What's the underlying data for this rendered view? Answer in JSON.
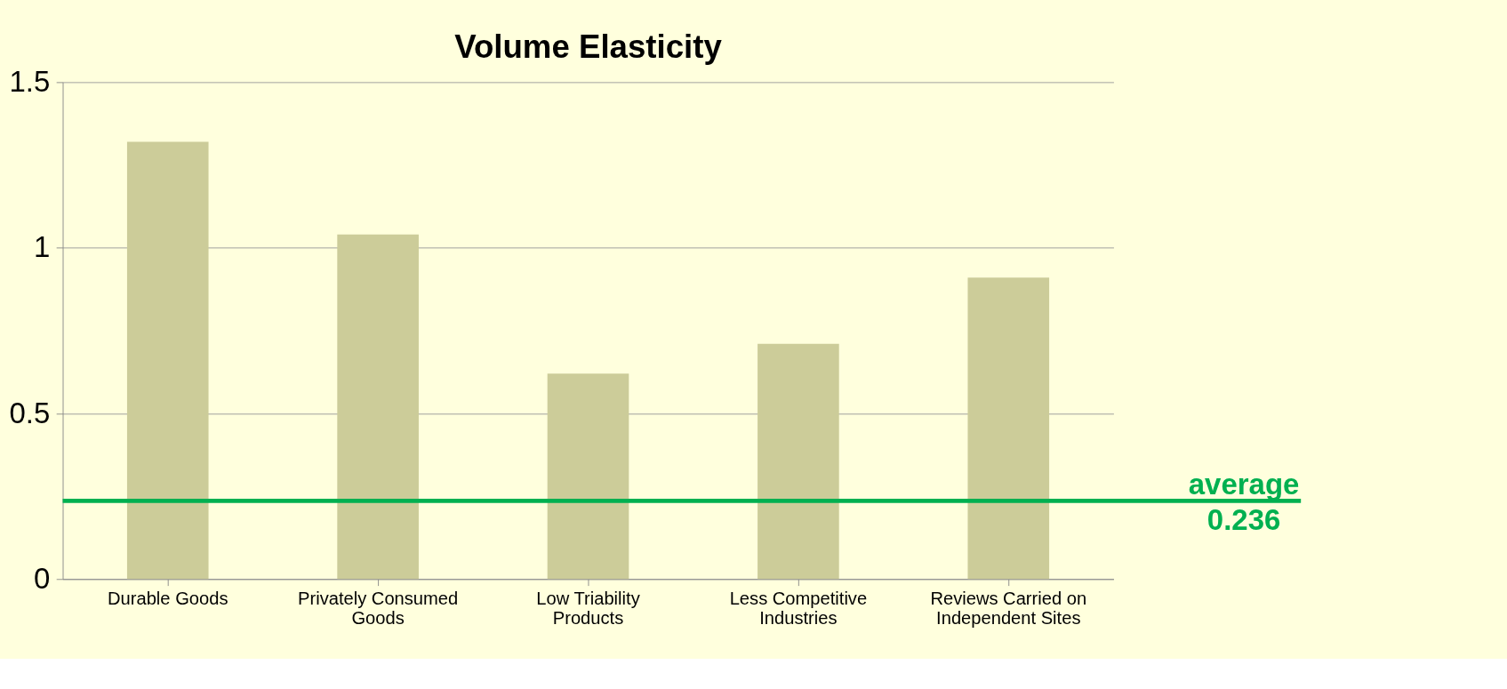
{
  "chart_data": {
    "type": "bar",
    "title": "Volume Elasticity",
    "categories": [
      "Durable Goods",
      "Privately Consumed Goods",
      "Low Triability Products",
      "Less Competitive Industries",
      "Reviews Carried on Independent Sites"
    ],
    "values": [
      1.32,
      1.04,
      0.62,
      0.71,
      0.91
    ],
    "color": "#cccc99",
    "ylim": [
      0,
      1.5
    ],
    "yticks": [
      0,
      0.5,
      1,
      1.5
    ],
    "grid": "y",
    "ref_lines": [
      {
        "axis": "y",
        "value": 0.236,
        "label": "average 0.236",
        "color": "#00b050"
      }
    ]
  }
}
